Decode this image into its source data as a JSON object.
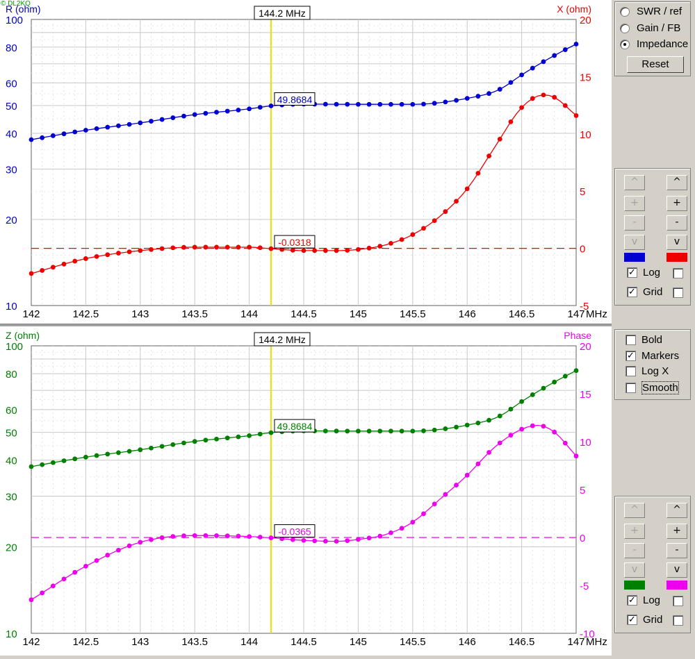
{
  "copyright": "© DL2KQ",
  "freq_unit": "MHz",
  "colors": {
    "panel1_left": "#0000d0",
    "panel1_right": "#ee0000",
    "panel2_left": "#008000",
    "panel2_right": "#ee00ee",
    "cursor": "#f0e000"
  },
  "mode_options": [
    {
      "label": "SWR / ref",
      "selected": false
    },
    {
      "label": "Gain / FB",
      "selected": false
    },
    {
      "label": "Impedance",
      "selected": true
    }
  ],
  "reset_label": "Reset",
  "panel1_controls": {
    "up": "^",
    "plus": "+",
    "minus": "-",
    "down": "v",
    "log_label": "Log",
    "log_checked": true,
    "grid_label": "Grid",
    "grid_checked": true
  },
  "panel2_controls": {
    "up": "^",
    "plus": "+",
    "minus": "-",
    "down": "v",
    "log_label": "Log",
    "log_checked": true,
    "grid_label": "Grid",
    "grid_checked": true
  },
  "options": [
    {
      "label": "Bold",
      "checked": false
    },
    {
      "label": "Markers",
      "checked": true
    },
    {
      "label": "Log X",
      "checked": false
    },
    {
      "label": "Smooth",
      "checked": false
    }
  ],
  "chart_data": [
    {
      "type": "line",
      "cursor_label": "144.2 MHz",
      "cursor_x": 144.2,
      "xlim": [
        142,
        147
      ],
      "x_ticks": [
        "142",
        "142.5",
        "143",
        "143.5",
        "144",
        "144.5",
        "145",
        "145.5",
        "146",
        "146.5",
        "147"
      ],
      "left_axis": {
        "label": "R (ohm)",
        "log": true,
        "lim": [
          10,
          100
        ],
        "ticks": [
          "10",
          "20",
          "30",
          "40",
          "50",
          "60",
          "80",
          "100"
        ]
      },
      "right_axis": {
        "label": "X (ohm)",
        "lim": [
          -5,
          20
        ],
        "ticks": [
          "-5",
          "0",
          "5",
          "10",
          "15",
          "20"
        ]
      },
      "zero_line": 0,
      "series": [
        {
          "axis": "left",
          "marker_value": "49.8684",
          "points": [
            [
              142,
              38
            ],
            [
              142.5,
              41
            ],
            [
              143,
              43.5
            ],
            [
              143.5,
              46.5
            ],
            [
              144,
              48.7
            ],
            [
              144.2,
              49.87
            ],
            [
              144.5,
              50.6
            ],
            [
              145,
              50.5
            ],
            [
              145.5,
              50.5
            ],
            [
              146,
              53
            ],
            [
              146.3,
              57
            ],
            [
              146.5,
              64
            ],
            [
              146.75,
              73
            ],
            [
              147,
              82
            ]
          ]
        },
        {
          "axis": "right",
          "marker_value": "-0.0318",
          "points": [
            [
              142,
              -2.2
            ],
            [
              142.5,
              -0.9
            ],
            [
              143,
              -0.2
            ],
            [
              143.5,
              0.1
            ],
            [
              144,
              0.1
            ],
            [
              144.2,
              -0.03
            ],
            [
              144.5,
              -0.2
            ],
            [
              144.8,
              -0.2
            ],
            [
              145,
              -0.1
            ],
            [
              145.25,
              0.3
            ],
            [
              145.5,
              1.2
            ],
            [
              145.75,
              2.8
            ],
            [
              146,
              5.2
            ],
            [
              146.25,
              8.8
            ],
            [
              146.5,
              12.3
            ],
            [
              146.7,
              13.4
            ],
            [
              146.8,
              13.2
            ],
            [
              147,
              11.6
            ]
          ]
        }
      ]
    },
    {
      "type": "line",
      "cursor_label": "144.2 MHz",
      "cursor_x": 144.2,
      "xlim": [
        142,
        147
      ],
      "x_ticks": [
        "142",
        "142.5",
        "143",
        "143.5",
        "144",
        "144.5",
        "145",
        "145.5",
        "146",
        "146.5",
        "147"
      ],
      "left_axis": {
        "label": "Z (ohm)",
        "log": true,
        "lim": [
          10,
          100
        ],
        "ticks": [
          "10",
          "20",
          "30",
          "40",
          "50",
          "60",
          "80",
          "100"
        ]
      },
      "right_axis": {
        "label": "Phase",
        "lim": [
          -10,
          20
        ],
        "ticks": [
          "-10",
          "-5",
          "0",
          "5",
          "10",
          "15",
          "20"
        ]
      },
      "zero_line": 0,
      "series": [
        {
          "axis": "left",
          "marker_value": "49.8684",
          "points": [
            [
              142,
              38
            ],
            [
              142.5,
              41
            ],
            [
              143,
              43.5
            ],
            [
              143.5,
              46.5
            ],
            [
              144,
              48.7
            ],
            [
              144.2,
              49.87
            ],
            [
              144.5,
              50.6
            ],
            [
              145,
              50.5
            ],
            [
              145.5,
              50.5
            ],
            [
              146,
              53
            ],
            [
              146.3,
              57
            ],
            [
              146.5,
              64
            ],
            [
              146.75,
              73
            ],
            [
              147,
              82
            ]
          ]
        },
        {
          "axis": "right",
          "marker_value": "-0.0365",
          "points": [
            [
              142,
              -6.5
            ],
            [
              142.5,
              -3
            ],
            [
              143,
              -0.5
            ],
            [
              143.5,
              0.2
            ],
            [
              144,
              0.1
            ],
            [
              144.2,
              -0.04
            ],
            [
              144.5,
              -0.3
            ],
            [
              144.8,
              -0.4
            ],
            [
              145,
              -0.2
            ],
            [
              145.25,
              0.3
            ],
            [
              145.5,
              1.6
            ],
            [
              145.75,
              4
            ],
            [
              146,
              6.5
            ],
            [
              146.25,
              9.4
            ],
            [
              146.5,
              11.3
            ],
            [
              146.65,
              11.7
            ],
            [
              146.8,
              11
            ],
            [
              147,
              8.5
            ]
          ]
        }
      ]
    }
  ]
}
